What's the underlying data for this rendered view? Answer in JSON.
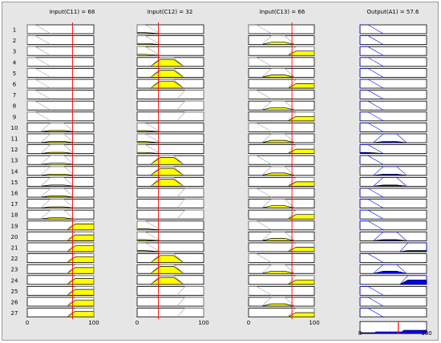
{
  "window": {
    "title": ""
  },
  "headers": {
    "c11": "Input(C11) = 68",
    "c12": "Input(C12) = 32",
    "c13": "Input(C13) = 66",
    "a1": "Output(A1) = 57.6"
  },
  "inputs": {
    "C11": 68,
    "C12": 32,
    "C13": 66
  },
  "output": {
    "A1": 57.6
  },
  "axis": {
    "min": 0,
    "max": 100,
    "min_label": "0",
    "max_label": "100"
  },
  "rule_numbers": [
    "1",
    "2",
    "3",
    "4",
    "5",
    "6",
    "7",
    "8",
    "9",
    "10",
    "11",
    "12",
    "13",
    "14",
    "15",
    "16",
    "17",
    "18",
    "19",
    "20",
    "21",
    "22",
    "23",
    "24",
    "25",
    "26",
    "27"
  ],
  "rules": [
    [
      1,
      1,
      1,
      1
    ],
    [
      1,
      1,
      2,
      1
    ],
    [
      1,
      1,
      3,
      1
    ],
    [
      1,
      2,
      1,
      1
    ],
    [
      1,
      2,
      2,
      1
    ],
    [
      1,
      2,
      3,
      1
    ],
    [
      1,
      3,
      1,
      1
    ],
    [
      1,
      3,
      2,
      1
    ],
    [
      1,
      3,
      3,
      1
    ],
    [
      2,
      1,
      1,
      1
    ],
    [
      2,
      1,
      2,
      2
    ],
    [
      2,
      1,
      3,
      1
    ],
    [
      2,
      2,
      1,
      1
    ],
    [
      2,
      2,
      2,
      2
    ],
    [
      2,
      2,
      3,
      2
    ],
    [
      2,
      3,
      1,
      1
    ],
    [
      2,
      3,
      2,
      1
    ],
    [
      2,
      3,
      3,
      1
    ],
    [
      3,
      1,
      1,
      1
    ],
    [
      3,
      1,
      2,
      2
    ],
    [
      3,
      1,
      3,
      3
    ],
    [
      3,
      2,
      1,
      1
    ],
    [
      3,
      2,
      2,
      2
    ],
    [
      3,
      2,
      3,
      3
    ],
    [
      3,
      3,
      1,
      1
    ],
    [
      3,
      3,
      2,
      1
    ],
    [
      3,
      3,
      3,
      1
    ]
  ],
  "colors": {
    "input_fill": "#ffff00",
    "output_fill": "#0000ff",
    "index_line": "#ff0000",
    "mf_line": "#a0a0a0"
  }
}
